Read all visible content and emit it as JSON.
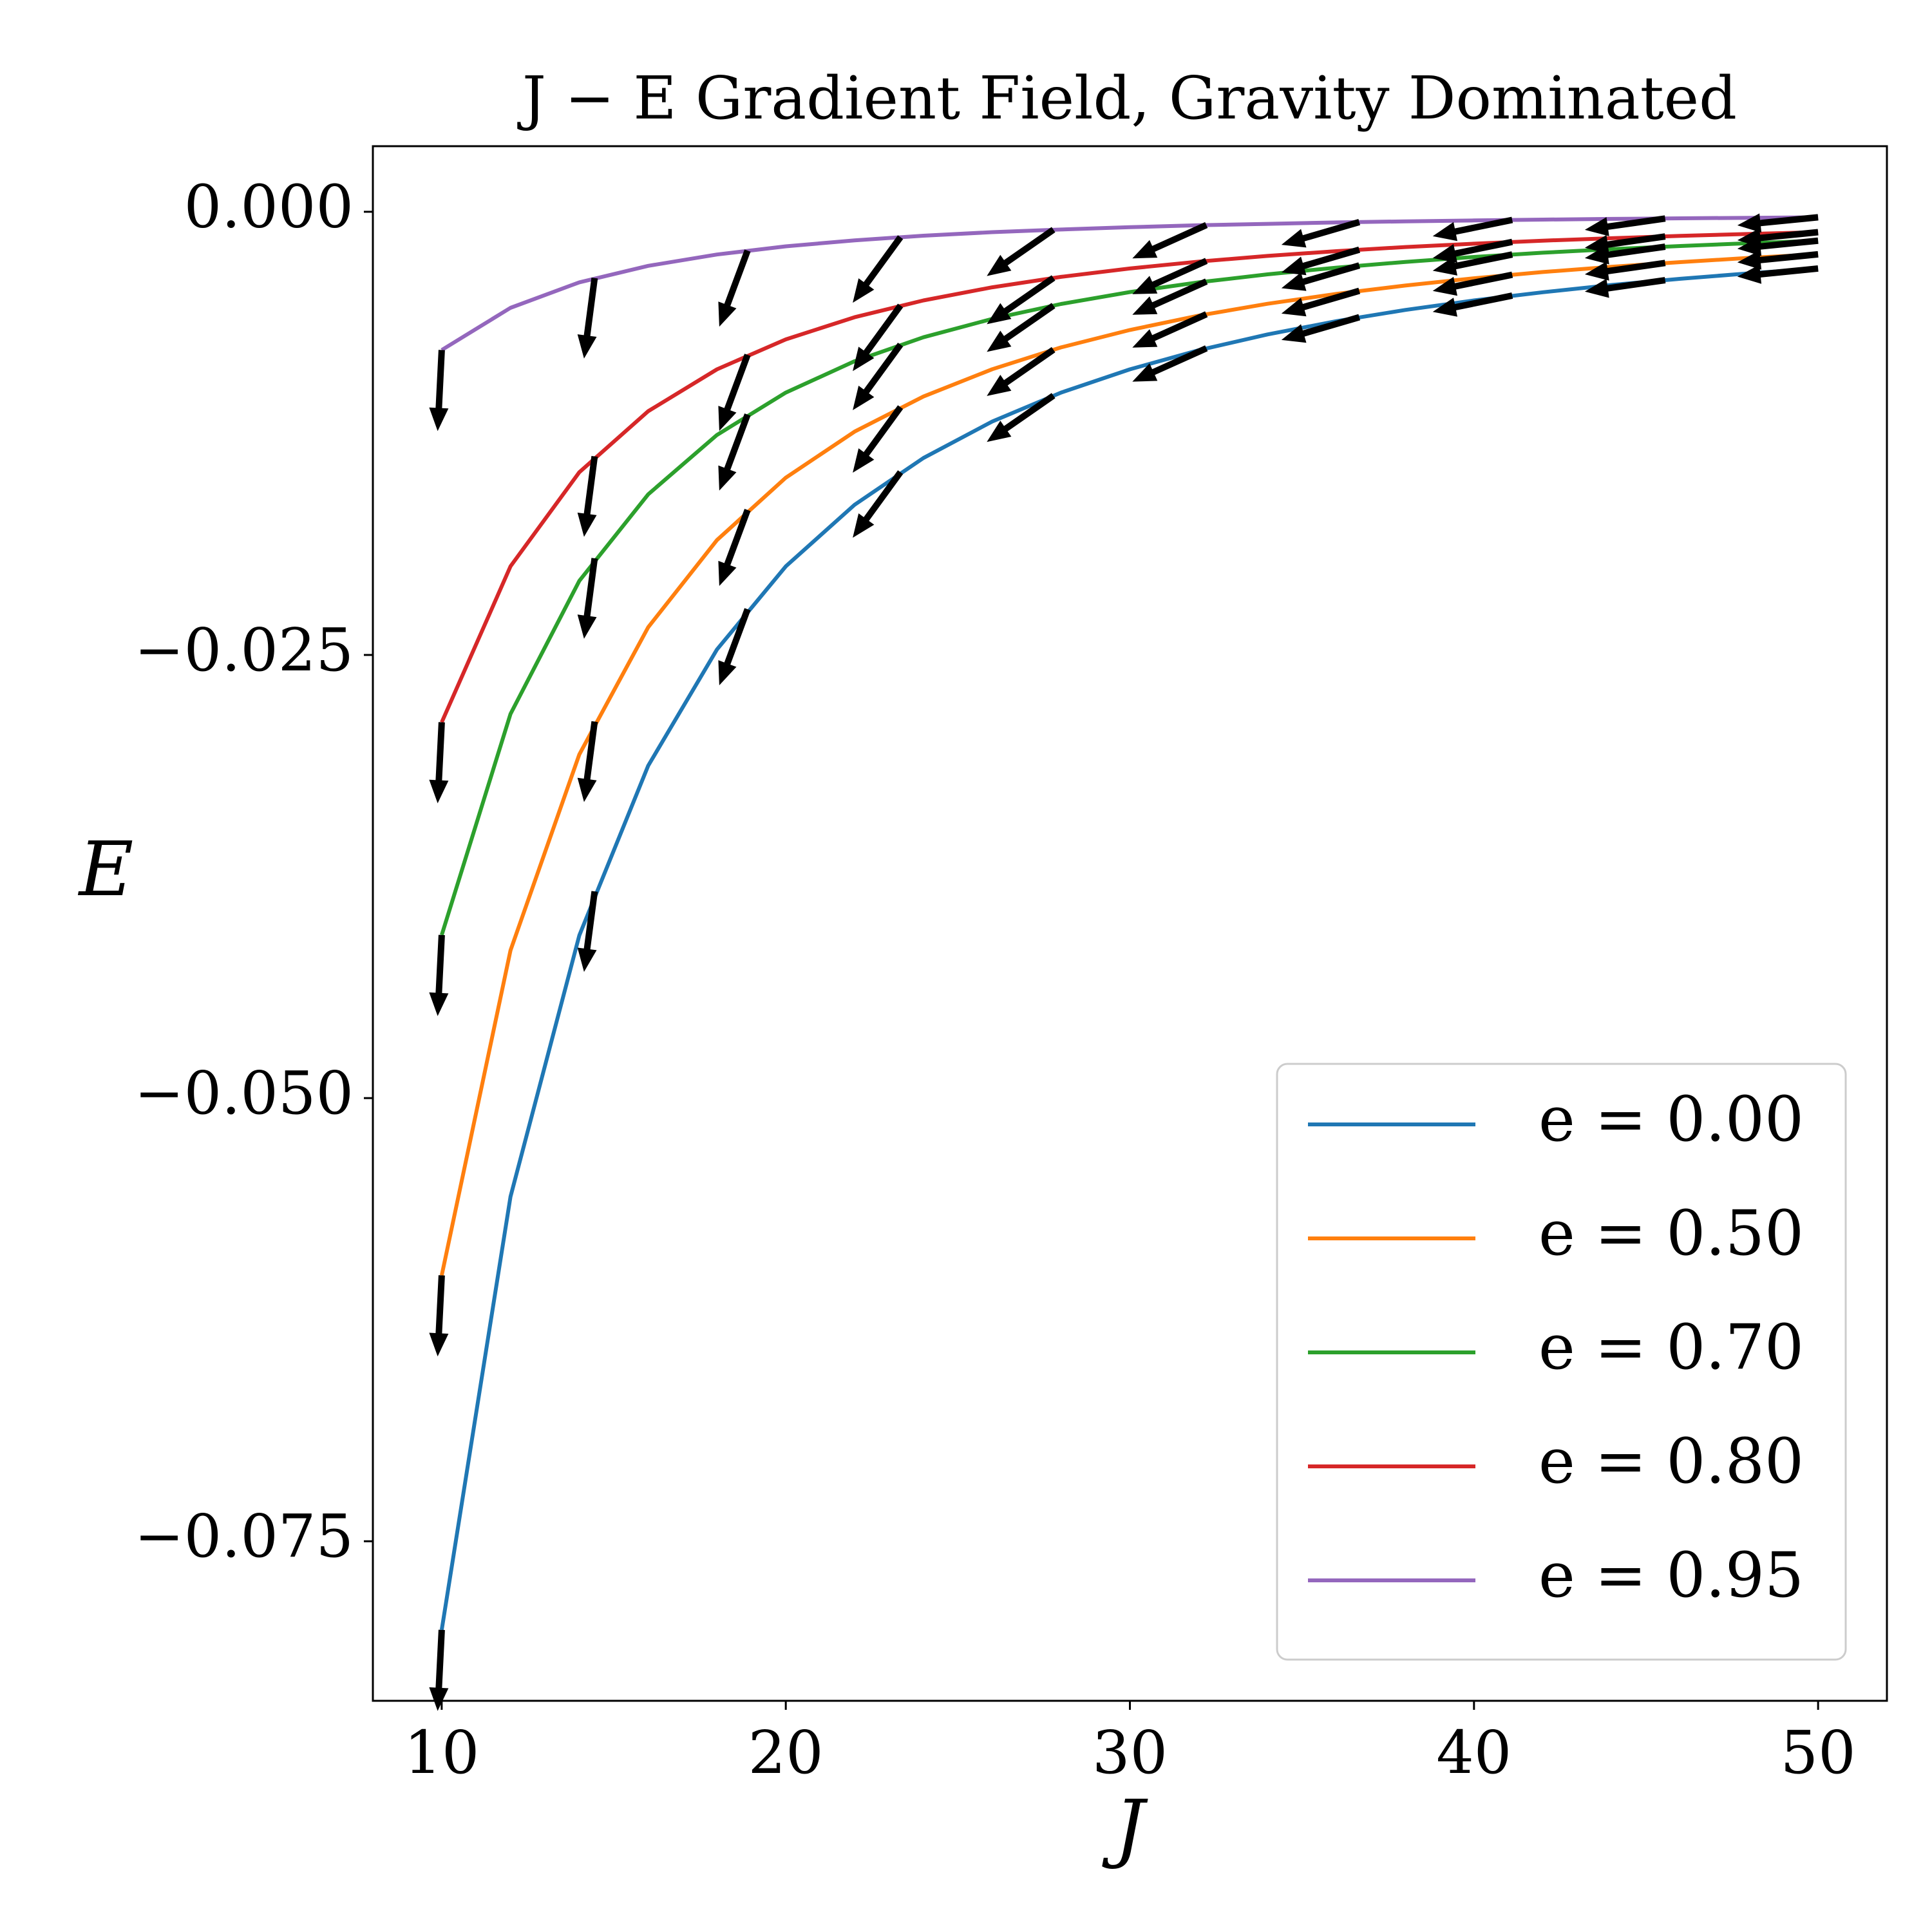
{
  "chart_data": {
    "type": "line",
    "title": "J − E Gradient Field, Gravity Dominated",
    "x_label": "J",
    "y_label": "E",
    "x": [
      10,
      12,
      14,
      16,
      18,
      20,
      22,
      24,
      26,
      28,
      30,
      32,
      34,
      36,
      38,
      40,
      42,
      44,
      46,
      48,
      50
    ],
    "series": [
      {
        "name": "e = 0.00",
        "color": "#1f77b4",
        "values": [
          -0.08,
          -0.05556,
          -0.04082,
          -0.03125,
          -0.02469,
          -0.02,
          -0.01653,
          -0.01389,
          -0.01183,
          -0.0102,
          -0.00889,
          -0.00781,
          -0.00692,
          -0.00617,
          -0.00554,
          -0.005,
          -0.00454,
          -0.00413,
          -0.00378,
          -0.00347,
          -0.0032
        ],
        "quiver_values": [
          -0.08,
          -0.03834,
          -0.02242,
          -0.01469,
          -0.01037,
          -0.0077,
          -0.00595,
          -0.00473,
          -0.00386,
          -0.0032
        ]
      },
      {
        "name": "e = 0.50",
        "color": "#ff7f0e",
        "values": [
          -0.06,
          -0.04167,
          -0.03061,
          -0.02344,
          -0.01852,
          -0.015,
          -0.0124,
          -0.01042,
          -0.00888,
          -0.00765,
          -0.00667,
          -0.00586,
          -0.00519,
          -0.00463,
          -0.00416,
          -0.00375,
          -0.0034,
          -0.0031,
          -0.00284,
          -0.0026,
          -0.0024
        ],
        "quiver_values": [
          -0.06,
          -0.02876,
          -0.01682,
          -0.01102,
          -0.00778,
          -0.00578,
          -0.00446,
          -0.00355,
          -0.00289,
          -0.0024
        ]
      },
      {
        "name": "e = 0.70",
        "color": "#2ca02c",
        "values": [
          -0.0408,
          -0.02833,
          -0.02082,
          -0.01594,
          -0.01259,
          -0.0102,
          -0.00843,
          -0.00708,
          -0.00604,
          -0.0052,
          -0.00453,
          -0.00398,
          -0.00353,
          -0.00315,
          -0.00283,
          -0.00255,
          -0.00231,
          -0.00211,
          -0.00193,
          -0.00177,
          -0.00163
        ],
        "quiver_values": [
          -0.0408,
          -0.01955,
          -0.01144,
          -0.00749,
          -0.00529,
          -0.00393,
          -0.00303,
          -0.00241,
          -0.00197,
          -0.00163
        ]
      },
      {
        "name": "e = 0.80",
        "color": "#d62728",
        "values": [
          -0.0288,
          -0.02,
          -0.01469,
          -0.01125,
          -0.00889,
          -0.0072,
          -0.00595,
          -0.005,
          -0.00426,
          -0.00367,
          -0.0032,
          -0.00281,
          -0.00249,
          -0.00222,
          -0.00199,
          -0.0018,
          -0.00163,
          -0.00149,
          -0.00136,
          -0.00125,
          -0.00115
        ],
        "quiver_values": [
          -0.0288,
          -0.0138,
          -0.00807,
          -0.00529,
          -0.00373,
          -0.00277,
          -0.00214,
          -0.0017,
          -0.00139,
          -0.00115
        ]
      },
      {
        "name": "e = 0.95",
        "color": "#9467bd",
        "values": [
          -0.0078,
          -0.00542,
          -0.00398,
          -0.00305,
          -0.00241,
          -0.00195,
          -0.00161,
          -0.00135,
          -0.00115,
          -0.001,
          -0.00087,
          -0.00076,
          -0.00068,
          -0.0006,
          -0.00054,
          -0.00049,
          -0.00044,
          -0.0004,
          -0.00037,
          -0.00034,
          -0.00031
        ],
        "quiver_values": [
          -0.0078,
          -0.00374,
          -0.00219,
          -0.00143,
          -0.00101,
          -0.00075,
          -0.00058,
          -0.00046,
          -0.00038,
          -0.00031
        ]
      }
    ],
    "quiver": {
      "color": "#000000",
      "x": [
        10,
        14.444,
        18.889,
        23.333,
        27.778,
        32.222,
        36.667,
        41.111,
        45.556,
        50
      ],
      "u": [
        -0.05,
        -0.13,
        -0.35,
        -0.59,
        -0.82,
        -0.91,
        -0.96,
        -0.98,
        -0.99,
        -1.0
      ],
      "v": [
        -1.0,
        -0.99,
        -0.94,
        -0.81,
        -0.57,
        -0.41,
        -0.28,
        -0.2,
        -0.14,
        -0.1
      ]
    },
    "xlim": [
      8,
      52
    ],
    "ylim": [
      -0.084,
      0.0037
    ],
    "xticks": [
      10,
      20,
      30,
      40,
      50
    ],
    "yticks": [
      {
        "value": 0,
        "label": "0.000"
      },
      {
        "value": -0.025,
        "label": "−0.025"
      },
      {
        "value": -0.05,
        "label": "−0.050"
      },
      {
        "value": -0.075,
        "label": "−0.075"
      }
    ],
    "legend": "lower right",
    "grid": false
  }
}
